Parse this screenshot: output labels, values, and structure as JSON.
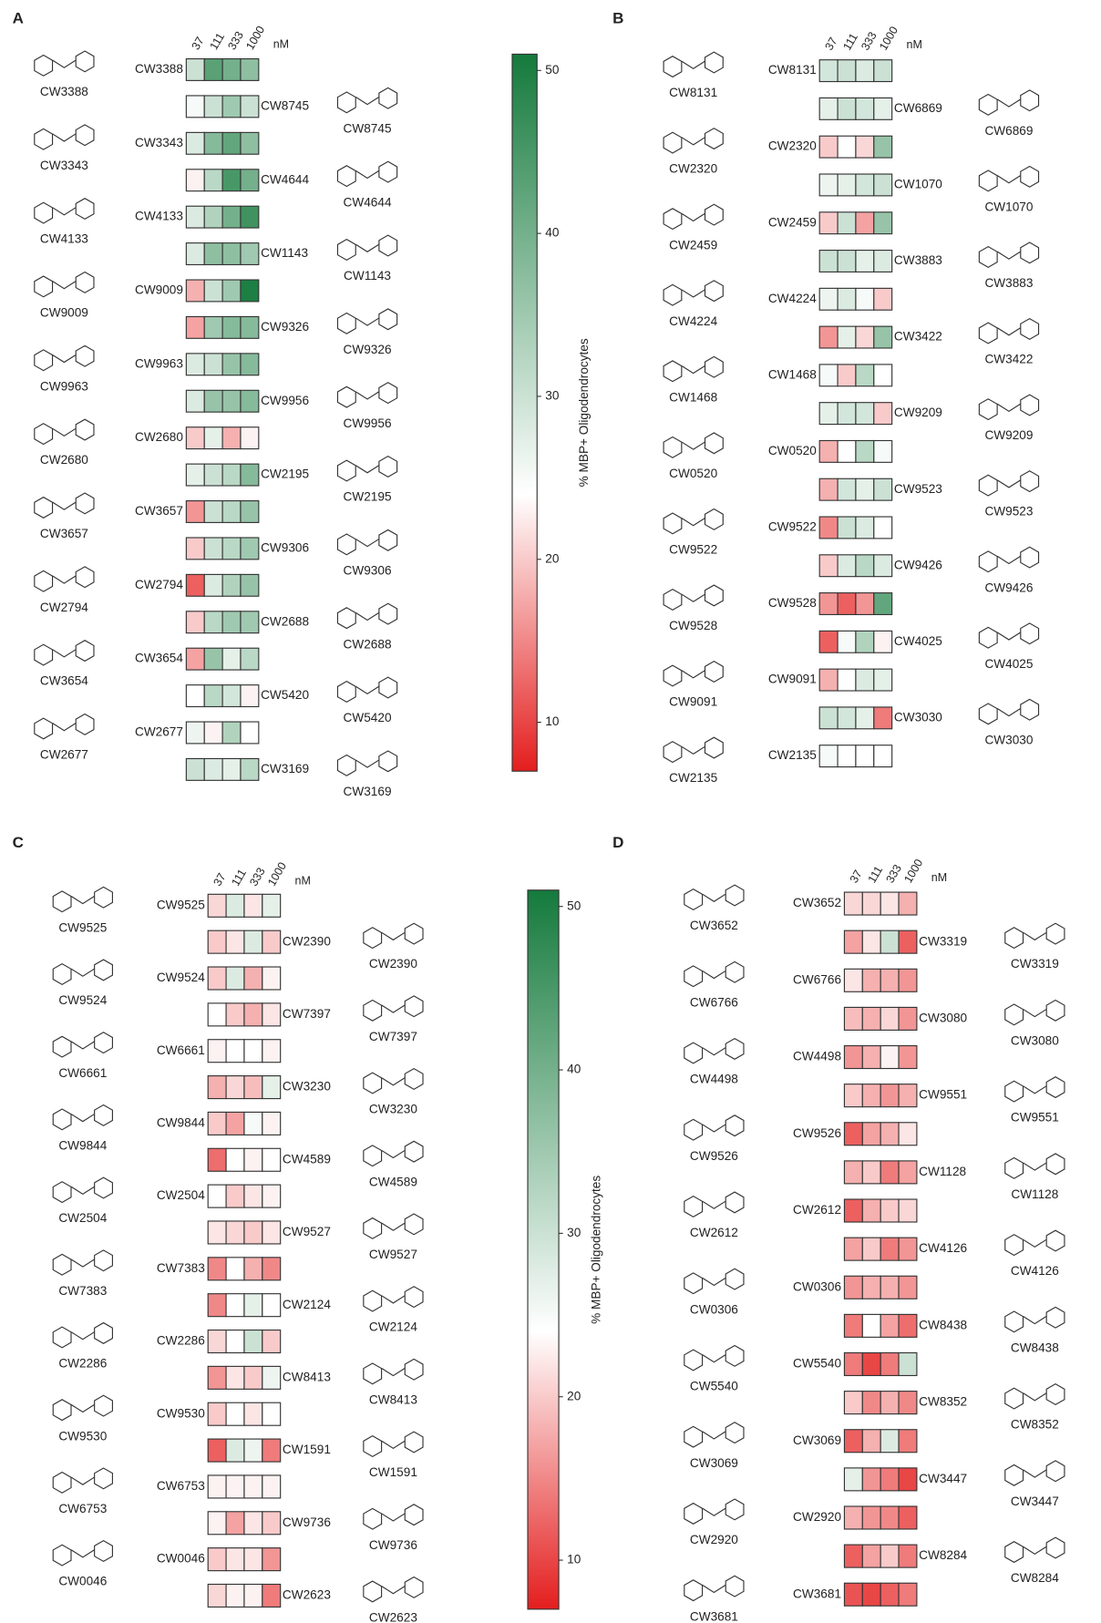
{
  "chart_data": [
    {
      "type": "heatmap",
      "panel": "A",
      "columns": [
        37,
        111,
        333,
        1000
      ],
      "column_unit": "nM",
      "clim": [
        7,
        51
      ],
      "cmid": 24,
      "colormap": [
        "#e41e1e",
        "#ffffff",
        "#147a3c"
      ],
      "colorbar": {
        "label": "% MBP+ Oligodendrocytes",
        "ticks": [
          10,
          20,
          30,
          40,
          50
        ]
      },
      "rows": [
        "CW3388",
        "CW8745",
        "CW3343",
        "CW4644",
        "CW4133",
        "CW1143",
        "CW9009",
        "CW9326",
        "CW9963",
        "CW9956",
        "CW2680",
        "CW2195",
        "CW3657",
        "CW9306",
        "CW2794",
        "CW2688",
        "CW3654",
        "CW5420",
        "CW2677",
        "CW3169"
      ],
      "values": [
        [
          30,
          43,
          40,
          37
        ],
        [
          25,
          30,
          35,
          30
        ],
        [
          28,
          38,
          42,
          37
        ],
        [
          23,
          32,
          45,
          40
        ],
        [
          28,
          33,
          40,
          46
        ],
        [
          28,
          37,
          37,
          35
        ],
        [
          18,
          30,
          35,
          50
        ],
        [
          17,
          35,
          38,
          38
        ],
        [
          28,
          30,
          36,
          38
        ],
        [
          28,
          36,
          36,
          38
        ],
        [
          20,
          27,
          18,
          23
        ],
        [
          27,
          30,
          32,
          38
        ],
        [
          16,
          30,
          32,
          36
        ],
        [
          20,
          30,
          32,
          35
        ],
        [
          12,
          28,
          33,
          36
        ],
        [
          20,
          32,
          35,
          35
        ],
        [
          17,
          36,
          27,
          32
        ],
        [
          24,
          32,
          29,
          23
        ],
        [
          26,
          23,
          33,
          24
        ],
        [
          30,
          28,
          27,
          32
        ]
      ]
    },
    {
      "type": "heatmap",
      "panel": "B",
      "columns": [
        37,
        111,
        333,
        1000
      ],
      "column_unit": "nM",
      "clim": [
        7,
        51
      ],
      "cmid": 24,
      "colormap": [
        "#e41e1e",
        "#ffffff",
        "#147a3c"
      ],
      "rows": [
        "CW8131",
        "CW6869",
        "CW2320",
        "CW1070",
        "CW2459",
        "CW3883",
        "CW4224",
        "CW3422",
        "CW1468",
        "CW9209",
        "CW0520",
        "CW9523",
        "CW9522",
        "CW9426",
        "CW9528",
        "CW4025",
        "CW9091",
        "CW3030",
        "CW2135"
      ],
      "values": [
        [
          29,
          30,
          28,
          30
        ],
        [
          27,
          30,
          29,
          27
        ],
        [
          20,
          24,
          21,
          36
        ],
        [
          26,
          27,
          29,
          30
        ],
        [
          20,
          30,
          17,
          36
        ],
        [
          30,
          30,
          27,
          28
        ],
        [
          26,
          28,
          25,
          20
        ],
        [
          16,
          27,
          21,
          36
        ],
        [
          25,
          20,
          32,
          24
        ],
        [
          27,
          29,
          29,
          20
        ],
        [
          18,
          24,
          32,
          25
        ],
        [
          18,
          29,
          27,
          30
        ],
        [
          15,
          30,
          28,
          24
        ],
        [
          20,
          28,
          32,
          28
        ],
        [
          16,
          12,
          16,
          42
        ],
        [
          12,
          25,
          33,
          23
        ],
        [
          18,
          24,
          28,
          27
        ],
        [
          30,
          29,
          27,
          14
        ],
        [
          25,
          24,
          24,
          24
        ]
      ]
    },
    {
      "type": "heatmap",
      "panel": "C",
      "columns": [
        37,
        111,
        333,
        1000
      ],
      "column_unit": "nM",
      "clim": [
        7,
        51
      ],
      "cmid": 24,
      "colormap": [
        "#e41e1e",
        "#ffffff",
        "#147a3c"
      ],
      "colorbar": {
        "label": "% MBP+ Oligodendrocytes",
        "ticks": [
          10,
          20,
          30,
          40,
          50
        ]
      },
      "rows": [
        "CW9525",
        "CW2390",
        "CW9524",
        "CW7397",
        "CW6661",
        "CW3230",
        "CW9844",
        "CW4589",
        "CW2504",
        "CW9527",
        "CW7383",
        "CW2124",
        "CW2286",
        "CW8413",
        "CW9530",
        "CW1591",
        "CW6753",
        "CW9736",
        "CW0046",
        "CW2623"
      ],
      "values": [
        [
          21,
          28,
          22,
          27
        ],
        [
          20,
          22,
          28,
          20
        ],
        [
          20,
          28,
          18,
          23
        ],
        [
          24,
          20,
          18,
          22
        ],
        [
          23,
          24,
          24,
          23
        ],
        [
          18,
          21,
          19,
          27
        ],
        [
          20,
          17,
          25,
          23
        ],
        [
          13,
          24,
          23,
          24
        ],
        [
          24,
          20,
          22,
          23
        ],
        [
          22,
          21,
          20,
          22
        ],
        [
          15,
          24,
          18,
          15
        ],
        [
          15,
          24,
          27,
          24
        ],
        [
          21,
          24,
          30,
          20
        ],
        [
          16,
          22,
          20,
          26
        ],
        [
          20,
          24,
          22,
          24
        ],
        [
          12,
          28,
          26,
          14
        ],
        [
          23,
          23,
          23,
          23
        ],
        [
          23,
          17,
          22,
          20
        ],
        [
          20,
          22,
          22,
          16
        ],
        [
          21,
          23,
          23,
          14
        ]
      ]
    },
    {
      "type": "heatmap",
      "panel": "D",
      "columns": [
        37,
        111,
        333,
        1000
      ],
      "column_unit": "nM",
      "clim": [
        7,
        51
      ],
      "cmid": 24,
      "colormap": [
        "#e41e1e",
        "#ffffff",
        "#147a3c"
      ],
      "rows": [
        "CW3652",
        "CW3319",
        "CW6766",
        "CW3080",
        "CW4498",
        "CW9551",
        "CW9526",
        "CW1128",
        "CW2612",
        "CW4126",
        "CW0306",
        "CW8438",
        "CW5540",
        "CW8352",
        "CW3069",
        "CW3447",
        "CW2920",
        "CW8284",
        "CW3681"
      ],
      "values": [
        [
          21,
          21,
          22,
          18
        ],
        [
          17,
          22,
          30,
          12
        ],
        [
          22,
          18,
          18,
          16
        ],
        [
          19,
          18,
          21,
          16
        ],
        [
          16,
          18,
          23,
          16
        ],
        [
          20,
          18,
          16,
          18
        ],
        [
          12,
          17,
          18,
          22
        ],
        [
          18,
          20,
          14,
          17
        ],
        [
          12,
          18,
          20,
          21
        ],
        [
          17,
          20,
          14,
          16
        ],
        [
          16,
          18,
          18,
          16
        ],
        [
          14,
          24,
          17,
          13
        ],
        [
          14,
          10,
          14,
          30
        ],
        [
          20,
          15,
          18,
          15
        ],
        [
          12,
          18,
          28,
          14
        ],
        [
          27,
          16,
          14,
          10
        ],
        [
          18,
          16,
          15,
          12
        ],
        [
          12,
          17,
          20,
          14
        ],
        [
          11,
          10,
          12,
          14
        ]
      ]
    }
  ]
}
